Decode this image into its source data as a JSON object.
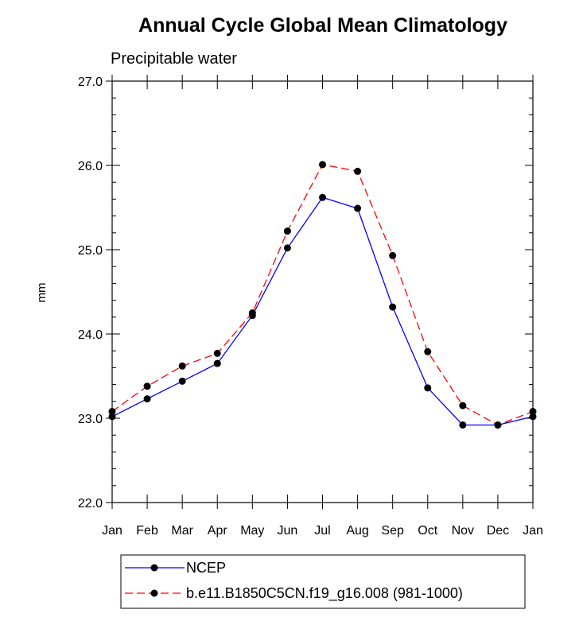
{
  "chart_data": {
    "type": "line",
    "title": "Annual Cycle Global Mean Climatology",
    "subtitle": "Precipitable water",
    "ylabel": "mm",
    "xlabel": "",
    "categories": [
      "Jan",
      "Feb",
      "Mar",
      "Apr",
      "May",
      "Jun",
      "Jul",
      "Aug",
      "Sep",
      "Oct",
      "Nov",
      "Dec",
      "Jan"
    ],
    "ylim": [
      22.0,
      27.0
    ],
    "yticks": [
      "22.0",
      "23.0",
      "24.0",
      "25.0",
      "26.0",
      "27.0"
    ],
    "grid": false,
    "legend_position": "bottom",
    "series": [
      {
        "name": "NCEP",
        "color": "#0000ff",
        "dash": "solid",
        "marker": "circle",
        "values": [
          23.02,
          23.23,
          23.44,
          23.65,
          24.22,
          25.02,
          25.62,
          25.49,
          24.32,
          23.36,
          22.92,
          22.92,
          23.02
        ]
      },
      {
        "name": "b.e11.B1850C5CN.f19_g16.008 (981-1000)",
        "color": "#ff0000",
        "dash": "dashed",
        "marker": "circle",
        "values": [
          23.08,
          23.38,
          23.62,
          23.77,
          24.25,
          25.22,
          26.01,
          25.93,
          24.93,
          23.79,
          23.15,
          22.92,
          23.08
        ]
      }
    ]
  }
}
